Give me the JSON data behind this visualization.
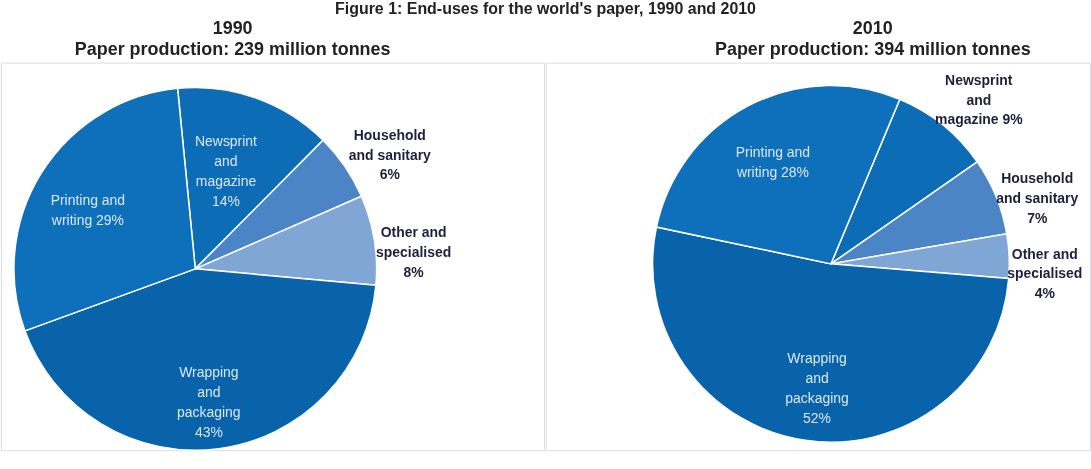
{
  "chart_data": [
    {
      "type": "pie",
      "title": "1990",
      "subtitle": "Paper production: 239 million tonnes",
      "annotations": [
        "Figure 1: End-uses for the world's paper, 1990 and 2010"
      ],
      "categories": [
        "Newsprint and magazine",
        "Household and sanitary",
        "Other and specialised",
        "Wrapping and packaging",
        "Printing and writing"
      ],
      "values": [
        14,
        6,
        8,
        43,
        29
      ],
      "value_labels": [
        "14%",
        "6%",
        "8%",
        "43%",
        "29%"
      ],
      "colors": [
        "#0c6cb6",
        "#4b85c6",
        "#80a6d6",
        "#0863ab",
        "#0e6fba"
      ]
    },
    {
      "type": "pie",
      "title": "2010",
      "subtitle": "Paper production: 394 million tonnes",
      "categories": [
        "Newsprint and magazine",
        "Household and sanitary",
        "Other and specialised",
        "Wrapping and packaging",
        "Printing and writing"
      ],
      "values": [
        9,
        7,
        4,
        52,
        28
      ],
      "value_labels": [
        "9%",
        "7%",
        "4%",
        "52%",
        "28%"
      ],
      "colors": [
        "#0c6cb6",
        "#4b85c6",
        "#80a6d6",
        "#0863ab",
        "#0e6fba"
      ]
    }
  ]
}
